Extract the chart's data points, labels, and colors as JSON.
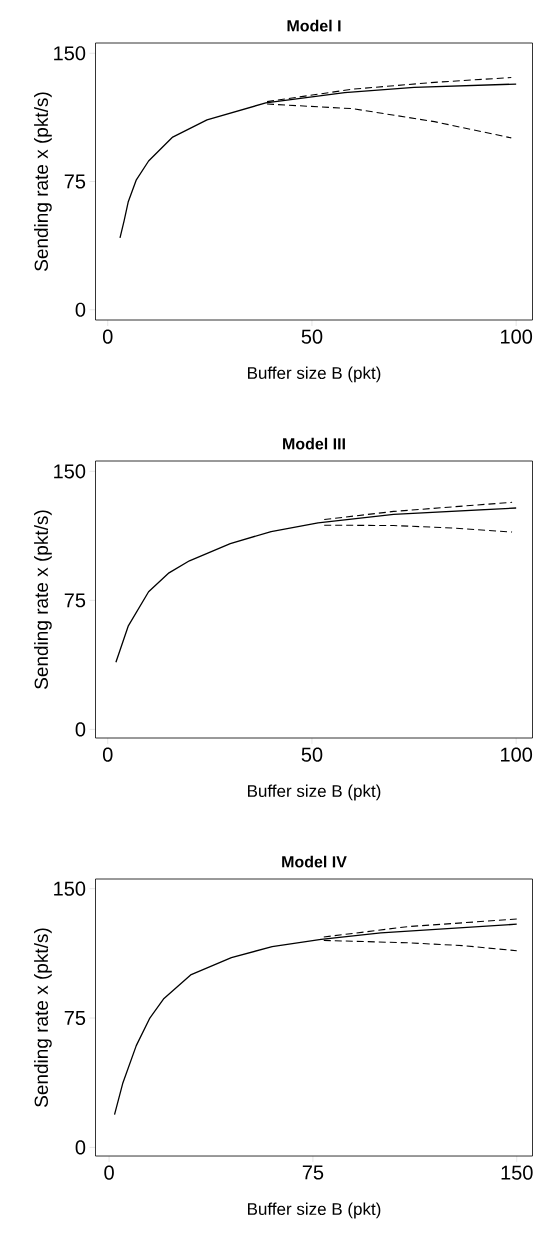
{
  "chart_data": [
    {
      "type": "line",
      "title": "Model I",
      "xlabel": "Buffer size B (pkt)",
      "ylabel": "Sending rate x (pkt/s)",
      "xlim": [
        -3,
        104
      ],
      "ylim": [
        -6,
        156
      ],
      "xticks": [
        0,
        50,
        100
      ],
      "yticks": [
        0,
        75,
        150
      ],
      "grid": false,
      "marker": "none",
      "series": [
        {
          "color": "#000000",
          "line_style": "solid",
          "x": [
            3,
            4,
            5,
            7,
            10,
            15.9,
            24.3,
            38.7,
            58,
            75,
            100
          ],
          "values": [
            42,
            52,
            63,
            76,
            87,
            101,
            111,
            121,
            127,
            130,
            132
          ]
        },
        {
          "color": "#000000",
          "line_style": "dashed",
          "x": [
            39,
            60,
            80,
            98.8
          ],
          "values": [
            121.7,
            129,
            133,
            135.8
          ]
        },
        {
          "color": "#000000",
          "line_style": "dashed",
          "x": [
            39,
            60,
            80,
            98.8
          ],
          "values": [
            120.3,
            117.6,
            110,
            100.5
          ]
        }
      ]
    },
    {
      "type": "line",
      "title": "Model III",
      "xlabel": "Buffer size B (pkt)",
      "ylabel": "Sending rate x (pkt/s)",
      "xlim": [
        -3,
        104
      ],
      "ylim": [
        -5,
        156
      ],
      "xticks": [
        0,
        50,
        100
      ],
      "yticks": [
        0,
        75,
        150
      ],
      "grid": false,
      "marker": "none",
      "series": [
        {
          "color": "#000000",
          "line_style": "solid",
          "x": [
            2,
            5,
            10,
            15,
            20,
            30,
            40,
            51.5,
            70,
            100
          ],
          "values": [
            39,
            60,
            80,
            91,
            98,
            108,
            115,
            120,
            125,
            128.7
          ]
        },
        {
          "color": "#000000",
          "line_style": "dashed",
          "x": [
            53,
            70,
            99
          ],
          "values": [
            122,
            126.7,
            132
          ]
        },
        {
          "color": "#000000",
          "line_style": "dashed",
          "x": [
            53,
            70,
            85,
            99
          ],
          "values": [
            118.7,
            118.5,
            117,
            114.7
          ]
        }
      ]
    },
    {
      "type": "line",
      "title": "Model IV",
      "xlabel": "Buffer size B (pkt)",
      "ylabel": "Sending rate x (pkt/s)",
      "xlim": [
        -5,
        155.8
      ],
      "ylim": [
        -5,
        155.6
      ],
      "xticks": [
        0,
        75,
        150
      ],
      "yticks": [
        0,
        75,
        150
      ],
      "grid": false,
      "marker": "none",
      "series": [
        {
          "color": "#000000",
          "line_style": "solid",
          "x": [
            2,
            5,
            10,
            15,
            20,
            30,
            45,
            60,
            78,
            100,
            150
          ],
          "values": [
            19,
            37,
            59,
            75,
            86,
            100,
            110,
            116.4,
            120.6,
            124.4,
            129.4
          ]
        },
        {
          "color": "#000000",
          "line_style": "dashed",
          "x": [
            79,
            110,
            150
          ],
          "values": [
            122,
            128,
            132.4
          ]
        },
        {
          "color": "#000000",
          "line_style": "dashed",
          "x": [
            79,
            110,
            130,
            150
          ],
          "values": [
            120,
            118.6,
            117,
            114
          ]
        }
      ]
    }
  ]
}
